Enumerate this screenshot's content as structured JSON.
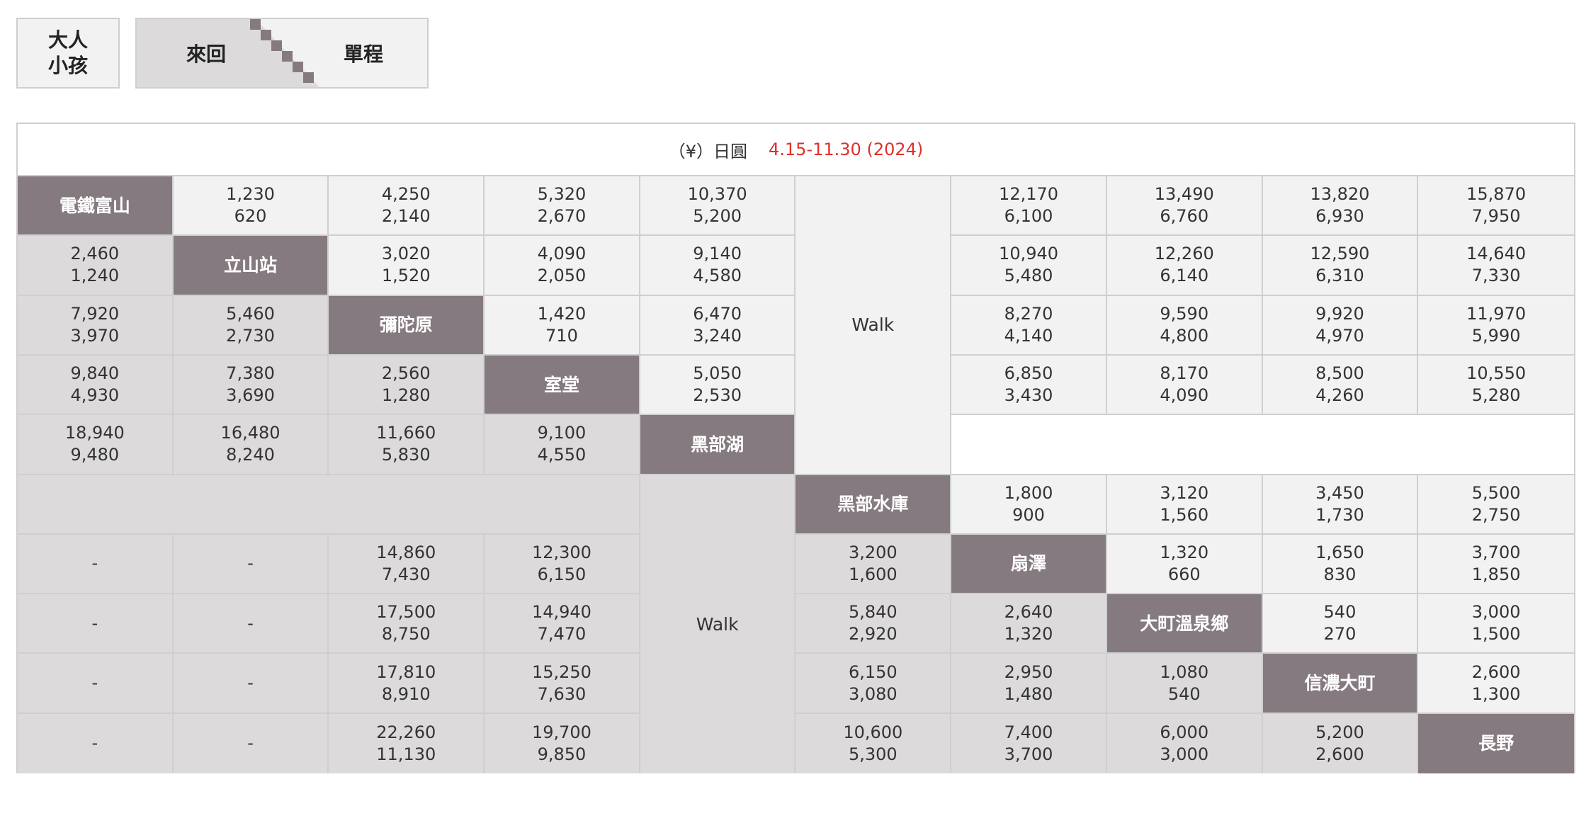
{
  "legend": {
    "passenger_adult": "大人",
    "passenger_child": "小孩",
    "trip_round": "來回",
    "trip_single": "單程"
  },
  "table": {
    "unit_label": "（¥）日圓",
    "season_label": "4.15-11.30 (2024)",
    "walk_label": "Walk",
    "stations": [
      "電鐵富山",
      "立山站",
      "彌陀原",
      "室堂",
      "黑部湖",
      "黑部水庫",
      "扇澤",
      "大町溫泉鄉",
      "信濃大町",
      "長野"
    ],
    "rows": [
      [
        null,
        [
          "1,230",
          "620"
        ],
        [
          "4,250",
          "2,140"
        ],
        [
          "5,320",
          "2,670"
        ],
        [
          "10,370",
          "5,200"
        ],
        null,
        [
          "12,170",
          "6,100"
        ],
        [
          "13,490",
          "6,760"
        ],
        [
          "13,820",
          "6,930"
        ],
        [
          "15,870",
          "7,950"
        ]
      ],
      [
        [
          "2,460",
          "1,240"
        ],
        null,
        [
          "3,020",
          "1,520"
        ],
        [
          "4,090",
          "2,050"
        ],
        [
          "9,140",
          "4,580"
        ],
        null,
        [
          "10,940",
          "5,480"
        ],
        [
          "12,260",
          "6,140"
        ],
        [
          "12,590",
          "6,310"
        ],
        [
          "14,640",
          "7,330"
        ]
      ],
      [
        [
          "7,920",
          "3,970"
        ],
        [
          "5,460",
          "2,730"
        ],
        null,
        [
          "1,420",
          "710"
        ],
        [
          "6,470",
          "3,240"
        ],
        null,
        [
          "8,270",
          "4,140"
        ],
        [
          "9,590",
          "4,800"
        ],
        [
          "9,920",
          "4,970"
        ],
        [
          "11,970",
          "5,990"
        ]
      ],
      [
        [
          "9,840",
          "4,930"
        ],
        [
          "7,380",
          "3,690"
        ],
        [
          "2,560",
          "1,280"
        ],
        null,
        [
          "5,050",
          "2,530"
        ],
        null,
        [
          "6,850",
          "3,430"
        ],
        [
          "8,170",
          "4,090"
        ],
        [
          "8,500",
          "4,260"
        ],
        [
          "10,550",
          "5,280"
        ]
      ],
      [
        [
          "18,940",
          "9,480"
        ],
        [
          "16,480",
          "8,240"
        ],
        [
          "11,660",
          "5,830"
        ],
        [
          "9,100",
          "4,550"
        ],
        null,
        null,
        null,
        null,
        null,
        null
      ],
      [
        null,
        null,
        null,
        null,
        null,
        null,
        [
          "1,800",
          "900"
        ],
        [
          "3,120",
          "1,560"
        ],
        [
          "3,450",
          "1,730"
        ],
        [
          "5,500",
          "2,750"
        ]
      ],
      [
        [
          "-"
        ],
        [
          "-"
        ],
        [
          "14,860",
          "7,430"
        ],
        [
          "12,300",
          "6,150"
        ],
        null,
        [
          "3,200",
          "1,600"
        ],
        null,
        [
          "1,320",
          "660"
        ],
        [
          "1,650",
          "830"
        ],
        [
          "3,700",
          "1,850"
        ]
      ],
      [
        [
          "-"
        ],
        [
          "-"
        ],
        [
          "17,500",
          "8,750"
        ],
        [
          "14,940",
          "7,470"
        ],
        null,
        [
          "5,840",
          "2,920"
        ],
        [
          "2,640",
          "1,320"
        ],
        null,
        [
          "540",
          "270"
        ],
        [
          "3,000",
          "1,500"
        ]
      ],
      [
        [
          "-"
        ],
        [
          "-"
        ],
        [
          "17,810",
          "8,910"
        ],
        [
          "15,250",
          "7,630"
        ],
        null,
        [
          "6,150",
          "3,080"
        ],
        [
          "2,950",
          "1,480"
        ],
        [
          "1,080",
          "540"
        ],
        null,
        [
          "2,600",
          "1,300"
        ]
      ],
      [
        [
          "-"
        ],
        [
          "-"
        ],
        [
          "22,260",
          "11,130"
        ],
        [
          "19,700",
          "9,850"
        ],
        null,
        [
          "10,600",
          "5,300"
        ],
        [
          "7,400",
          "3,700"
        ],
        [
          "6,000",
          "3,000"
        ],
        [
          "5,200",
          "2,600"
        ],
        null
      ]
    ]
  },
  "colors": {
    "station_bg": "#857a80",
    "round_trip_bg": "#dcdadb",
    "single_trip_bg": "#f2f2f2",
    "season_text": "#e0302a",
    "border": "#cfcfcf"
  }
}
